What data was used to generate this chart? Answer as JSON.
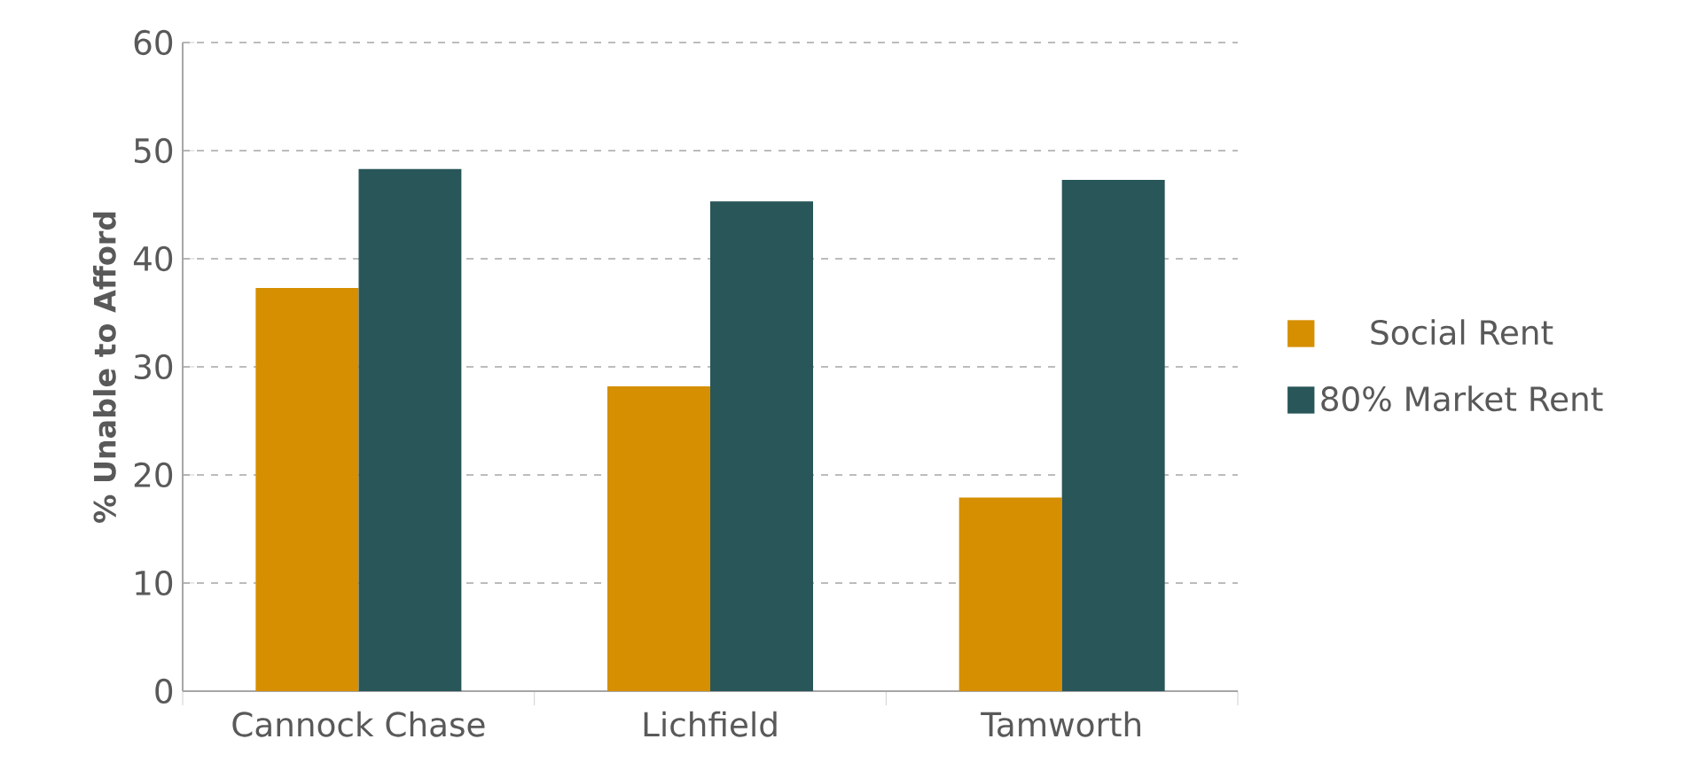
{
  "chart_data": {
    "type": "bar",
    "ylabel": "% Unable to Afford",
    "categories": [
      "Cannock Chase",
      "Lichfield",
      "Tamworth"
    ],
    "series": [
      {
        "name": "Social Rent",
        "color": "#d68f00",
        "values": [
          37.3,
          28.2,
          17.9
        ]
      },
      {
        "name": "80% Market Rent",
        "color": "#285659",
        "values": [
          48.3,
          45.3,
          47.3
        ]
      }
    ],
    "ylim": [
      0,
      60
    ],
    "yticks": [
      0,
      10,
      20,
      30,
      40,
      50,
      60
    ],
    "grid": "y",
    "legend": "right"
  }
}
